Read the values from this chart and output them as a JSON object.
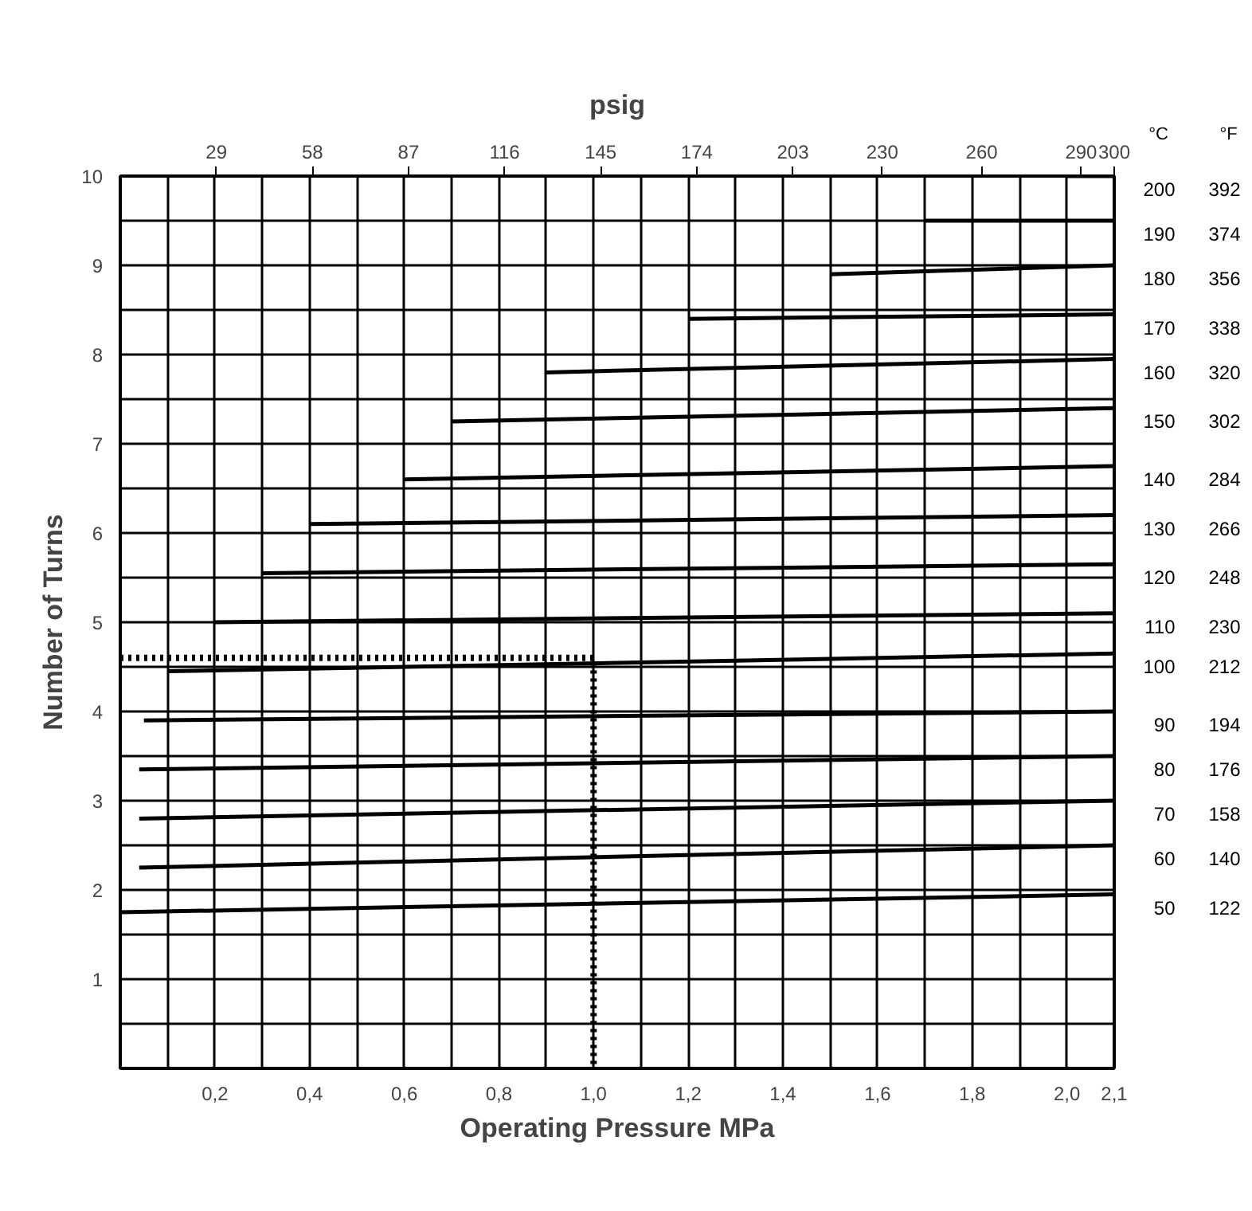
{
  "chart_data": {
    "type": "line",
    "xlabel": "Operating Pressure MPa",
    "ylabel": "Number of Turns",
    "x2label": "psig",
    "xlim": [
      0,
      2.1
    ],
    "ylim": [
      0,
      10
    ],
    "x2lim": [
      0,
      300
    ],
    "xticks": [
      {
        "value": 0.1,
        "label": null
      },
      {
        "value": 0.2,
        "label": "0,2"
      },
      {
        "value": 0.3,
        "label": null
      },
      {
        "value": 0.4,
        "label": "0,4"
      },
      {
        "value": 0.5,
        "label": null
      },
      {
        "value": 0.6,
        "label": "0,6"
      },
      {
        "value": 0.7,
        "label": null
      },
      {
        "value": 0.8,
        "label": "0,8"
      },
      {
        "value": 0.9,
        "label": null
      },
      {
        "value": 1.0,
        "label": "1,0"
      },
      {
        "value": 1.1,
        "label": null
      },
      {
        "value": 1.2,
        "label": "1,2"
      },
      {
        "value": 1.3,
        "label": null
      },
      {
        "value": 1.4,
        "label": "1,4"
      },
      {
        "value": 1.5,
        "label": null
      },
      {
        "value": 1.6,
        "label": "1,6"
      },
      {
        "value": 1.7,
        "label": null
      },
      {
        "value": 1.8,
        "label": "1,8"
      },
      {
        "value": 1.9,
        "label": null
      },
      {
        "value": 2.0,
        "label": "2,0"
      },
      {
        "value": 2.1,
        "label": "2,1"
      }
    ],
    "yticks": [
      {
        "value": 0.5,
        "label": null
      },
      1,
      {
        "value": 1.5,
        "label": null
      },
      2,
      {
        "value": 2.5,
        "label": null
      },
      3,
      {
        "value": 3.5,
        "label": null
      },
      4,
      {
        "value": 4.5,
        "label": null
      },
      5,
      {
        "value": 5.5,
        "label": null
      },
      6,
      {
        "value": 6.5,
        "label": null
      },
      7,
      {
        "value": 7.5,
        "label": null
      },
      8,
      {
        "value": 8.5,
        "label": null
      },
      9,
      {
        "value": 9.5,
        "label": null
      },
      10
    ],
    "x2ticks": [
      29,
      58,
      87,
      116,
      145,
      174,
      203,
      230,
      260,
      290,
      300
    ],
    "grid": true,
    "line_style": "solid",
    "series": [
      {
        "name": "200",
        "color": "#000000",
        "x": [
          2.0,
          2.1
        ],
        "values": [
          10.0,
          10.0
        ]
      },
      {
        "name": "190",
        "color": "#000000",
        "x": [
          1.7,
          2.1
        ],
        "values": [
          9.5,
          9.5
        ]
      },
      {
        "name": "180",
        "color": "#000000",
        "x": [
          1.5,
          2.1
        ],
        "values": [
          8.9,
          9.0
        ]
      },
      {
        "name": "170",
        "color": "#000000",
        "x": [
          1.2,
          2.1
        ],
        "values": [
          8.4,
          8.45
        ]
      },
      {
        "name": "160",
        "color": "#000000",
        "x": [
          0.9,
          2.1
        ],
        "values": [
          7.8,
          7.95
        ]
      },
      {
        "name": "150",
        "color": "#000000",
        "x": [
          0.7,
          2.1
        ],
        "values": [
          7.25,
          7.4
        ]
      },
      {
        "name": "140",
        "color": "#000000",
        "x": [
          0.6,
          2.1
        ],
        "values": [
          6.6,
          6.75
        ]
      },
      {
        "name": "130",
        "color": "#000000",
        "x": [
          0.4,
          2.1
        ],
        "values": [
          6.1,
          6.2
        ]
      },
      {
        "name": "120",
        "color": "#000000",
        "x": [
          0.3,
          2.1
        ],
        "values": [
          5.55,
          5.65
        ]
      },
      {
        "name": "110",
        "color": "#000000",
        "x": [
          0.2,
          2.1
        ],
        "values": [
          5.0,
          5.1
        ]
      },
      {
        "name": "100",
        "color": "#000000",
        "x": [
          0.1,
          2.1
        ],
        "values": [
          4.45,
          4.65
        ]
      },
      {
        "name": "90",
        "color": "#000000",
        "x": [
          0.05,
          2.1
        ],
        "values": [
          3.9,
          4.0
        ]
      },
      {
        "name": "80",
        "color": "#000000",
        "x": [
          0.04,
          2.1
        ],
        "values": [
          3.35,
          3.5
        ]
      },
      {
        "name": "70",
        "color": "#000000",
        "x": [
          0.04,
          2.1
        ],
        "values": [
          2.8,
          3.0
        ]
      },
      {
        "name": "60",
        "color": "#000000",
        "x": [
          0.04,
          2.1
        ],
        "values": [
          2.25,
          2.5
        ]
      },
      {
        "name": "50",
        "color": "#000000",
        "x": [
          0.0,
          2.1
        ],
        "values": [
          1.75,
          1.95
        ]
      },
      {
        "color": "#000000",
        "line_style": "dotted",
        "x": [
          0.0,
          1.0,
          1.0
        ],
        "values": [
          4.6,
          4.6,
          0.0
        ]
      }
    ],
    "annotations": [
      "°C",
      "°F",
      "392",
      "374",
      "356",
      "338",
      "320",
      "302",
      "284",
      "266",
      "248",
      "230",
      "212",
      "194",
      "176",
      "158",
      "140",
      "122"
    ]
  }
}
